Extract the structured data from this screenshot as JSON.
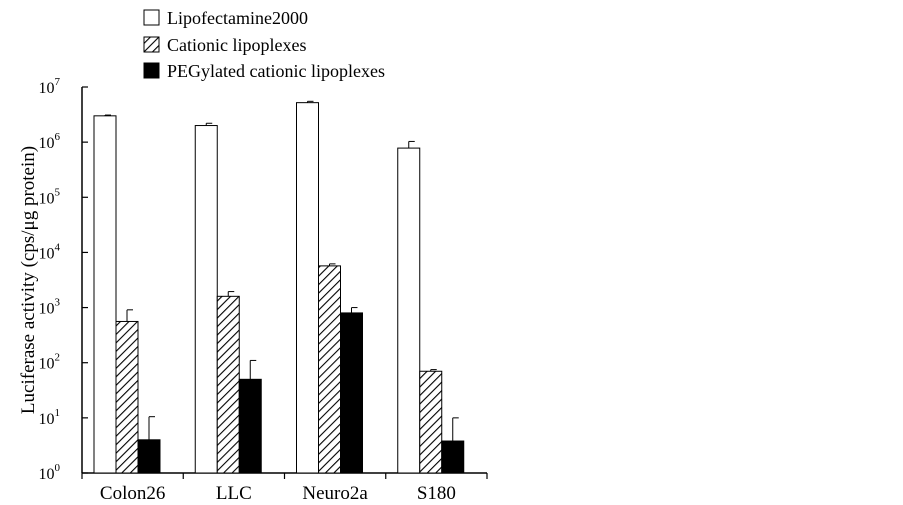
{
  "chart_data": {
    "type": "bar",
    "title": "",
    "xlabel": "",
    "ylabel": "Luciferase activity (cps/μg protein)",
    "yscale": "log",
    "ylim": [
      1,
      10000000
    ],
    "yticks": [
      {
        "base": "10",
        "exp": "0",
        "value": 1
      },
      {
        "base": "10",
        "exp": "1",
        "value": 10
      },
      {
        "base": "10",
        "exp": "2",
        "value": 100
      },
      {
        "base": "10",
        "exp": "3",
        "value": 1000
      },
      {
        "base": "10",
        "exp": "4",
        "value": 10000
      },
      {
        "base": "10",
        "exp": "5",
        "value": 100000
      },
      {
        "base": "10",
        "exp": "6",
        "value": 1000000
      },
      {
        "base": "10",
        "exp": "7",
        "value": 10000000
      }
    ],
    "categories": [
      "Colon26",
      "LLC",
      "Neuro2a",
      "S180"
    ],
    "legend_position": "top",
    "grid": false,
    "series": [
      {
        "name": "Lipofectamine2000",
        "fill": "white",
        "values": [
          3000000,
          2000000,
          5200000,
          780000
        ],
        "errors": [
          100000,
          200000,
          300000,
          250000
        ]
      },
      {
        "name": "Cationic lipoplexes",
        "fill": "hatched",
        "values": [
          560,
          1600,
          5700,
          70
        ],
        "errors": [
          350,
          350,
          500,
          5
        ]
      },
      {
        "name": "PEGylated cationic lipoplexes",
        "fill": "black",
        "values": [
          4,
          50,
          800,
          3.8
        ],
        "errors": [
          6.5,
          60,
          200,
          6.2
        ]
      }
    ]
  }
}
